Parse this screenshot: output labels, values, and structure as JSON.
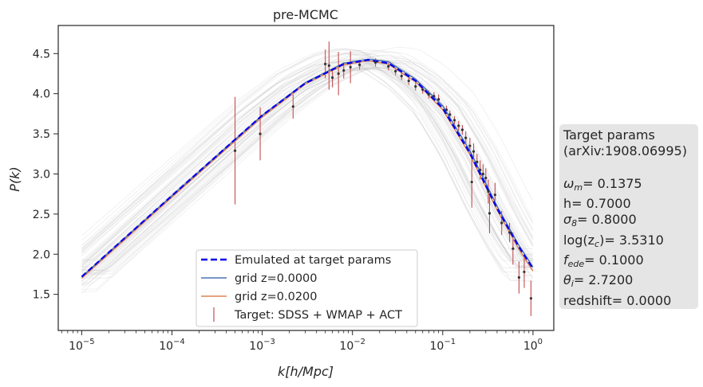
{
  "chart_data": {
    "type": "line",
    "title": "pre-MCMC",
    "xlabel": "k[h/Mpc]",
    "ylabel": "P(k)",
    "xscale": "log",
    "xlim": [
      5.5e-06,
      1.7
    ],
    "ylim": [
      1.05,
      4.85
    ],
    "grid": false,
    "x_ticks": [
      {
        "value": 1e-05,
        "label": "10",
        "exp": "−5"
      },
      {
        "value": 0.0001,
        "label": "10",
        "exp": "−4"
      },
      {
        "value": 0.001,
        "label": "10",
        "exp": "−3"
      },
      {
        "value": 0.01,
        "label": "10",
        "exp": "−2"
      },
      {
        "value": 0.1,
        "label": "10",
        "exp": "−1"
      },
      {
        "value": 1,
        "label": "10",
        "exp": "0"
      }
    ],
    "y_ticks": [
      {
        "value": 1.5,
        "label": "1.5"
      },
      {
        "value": 2.0,
        "label": "2.0"
      },
      {
        "value": 2.5,
        "label": "2.5"
      },
      {
        "value": 3.0,
        "label": "3.0"
      },
      {
        "value": 3.5,
        "label": "3.5"
      },
      {
        "value": 4.0,
        "label": "4.0"
      },
      {
        "value": 4.5,
        "label": "4.5"
      }
    ],
    "legend_position": "lower-center",
    "series": [
      {
        "name": "Emulated at target params",
        "style": "dashed",
        "color": "#0000ee",
        "x": [
          1e-05,
          0.0001,
          0.001,
          0.003,
          0.008,
          0.015,
          0.025,
          0.05,
          0.1,
          0.2,
          0.4,
          0.7,
          1.0
        ],
        "y": [
          1.72,
          2.73,
          3.73,
          4.13,
          4.37,
          4.42,
          4.38,
          4.16,
          3.82,
          3.26,
          2.57,
          2.09,
          1.82
        ]
      },
      {
        "name": "grid z=0.0000",
        "style": "solid",
        "color": "#4c72b0",
        "x": [
          1e-05,
          0.0001,
          0.001,
          0.003,
          0.008,
          0.015,
          0.025,
          0.05,
          0.1,
          0.2,
          0.4,
          0.7,
          1.0
        ],
        "y": [
          1.72,
          2.73,
          3.73,
          4.14,
          4.38,
          4.43,
          4.4,
          4.18,
          3.85,
          3.29,
          2.6,
          2.11,
          1.84
        ]
      },
      {
        "name": "grid z=0.0200",
        "style": "solid",
        "color": "#dd8452",
        "x": [
          1e-05,
          0.0001,
          0.001,
          0.003,
          0.008,
          0.015,
          0.025,
          0.05,
          0.1,
          0.2,
          0.4,
          0.7,
          1.0
        ],
        "y": [
          1.7,
          2.71,
          3.71,
          4.12,
          4.36,
          4.41,
          4.37,
          4.15,
          3.8,
          3.24,
          2.55,
          2.06,
          1.79
        ]
      }
    ],
    "target_points": {
      "name": "Target: SDSS + WMAP + ACT",
      "color": "#c44e52",
      "points": [
        {
          "x": 0.0005,
          "y": 3.29,
          "err": 0.67
        },
        {
          "x": 0.00095,
          "y": 3.5,
          "err": 0.33
        },
        {
          "x": 0.0022,
          "y": 3.84,
          "err": 0.15
        },
        {
          "x": 0.005,
          "y": 4.37,
          "err": 0.18
        },
        {
          "x": 0.0055,
          "y": 4.35,
          "err": 0.3
        },
        {
          "x": 0.006,
          "y": 4.2,
          "err": 0.12
        },
        {
          "x": 0.007,
          "y": 4.25,
          "err": 0.27
        },
        {
          "x": 0.008,
          "y": 4.29,
          "err": 0.1
        },
        {
          "x": 0.0095,
          "y": 4.33,
          "err": 0.2
        },
        {
          "x": 0.012,
          "y": 4.36,
          "err": 0.06
        },
        {
          "x": 0.018,
          "y": 4.39,
          "err": 0.05
        },
        {
          "x": 0.025,
          "y": 4.34,
          "err": 0.05
        },
        {
          "x": 0.03,
          "y": 4.28,
          "err": 0.05
        },
        {
          "x": 0.035,
          "y": 4.22,
          "err": 0.05
        },
        {
          "x": 0.042,
          "y": 4.16,
          "err": 0.05
        },
        {
          "x": 0.05,
          "y": 4.09,
          "err": 0.05
        },
        {
          "x": 0.06,
          "y": 4.05,
          "err": 0.05
        },
        {
          "x": 0.07,
          "y": 3.99,
          "err": 0.05
        },
        {
          "x": 0.08,
          "y": 3.97,
          "err": 0.05
        },
        {
          "x": 0.09,
          "y": 3.93,
          "err": 0.06
        },
        {
          "x": 0.11,
          "y": 3.8,
          "err": 0.05
        },
        {
          "x": 0.12,
          "y": 3.74,
          "err": 0.05
        },
        {
          "x": 0.135,
          "y": 3.67,
          "err": 0.05
        },
        {
          "x": 0.15,
          "y": 3.6,
          "err": 0.06
        },
        {
          "x": 0.165,
          "y": 3.55,
          "err": 0.06
        },
        {
          "x": 0.18,
          "y": 3.45,
          "err": 0.08
        },
        {
          "x": 0.2,
          "y": 3.35,
          "err": 0.1
        },
        {
          "x": 0.21,
          "y": 2.9,
          "err": 0.32
        },
        {
          "x": 0.22,
          "y": 3.28,
          "err": 0.1
        },
        {
          "x": 0.24,
          "y": 3.15,
          "err": 0.1
        },
        {
          "x": 0.26,
          "y": 3.05,
          "err": 0.12
        },
        {
          "x": 0.28,
          "y": 3.0,
          "err": 0.12
        },
        {
          "x": 0.3,
          "y": 2.95,
          "err": 0.12
        },
        {
          "x": 0.32,
          "y": 2.78,
          "err": 0.15
        },
        {
          "x": 0.33,
          "y": 2.51,
          "err": 0.25
        },
        {
          "x": 0.38,
          "y": 2.74,
          "err": 0.15
        },
        {
          "x": 0.45,
          "y": 2.39,
          "err": 0.15
        },
        {
          "x": 0.55,
          "y": 2.27,
          "err": 0.12
        },
        {
          "x": 0.6,
          "y": 2.07,
          "err": 0.2
        },
        {
          "x": 0.7,
          "y": 1.71,
          "err": 0.2
        },
        {
          "x": 0.8,
          "y": 1.78,
          "err": 0.2
        },
        {
          "x": 0.95,
          "y": 1.45,
          "err": 0.22
        }
      ]
    }
  },
  "param_box": {
    "title_line1": "Target params",
    "title_line2": "(arXiv:1908.06995)",
    "params": [
      {
        "sym": "ω",
        "sub": "m",
        "value": "= 0.1375"
      },
      {
        "sym": "h",
        "sub": "",
        "value": "= 0.7000"
      },
      {
        "sym": "σ",
        "sub": "8",
        "value": "= 0.8000"
      },
      {
        "sym": "log(z",
        "sub": "c",
        "value": ")= 3.5310"
      },
      {
        "sym": "f",
        "sub": "ede",
        "value": "= 0.1000"
      },
      {
        "sym": "θ",
        "sub": "i",
        "value": "= 2.7200"
      },
      {
        "sym": "redshift",
        "sub": "",
        "value": "= 0.0000"
      }
    ]
  }
}
